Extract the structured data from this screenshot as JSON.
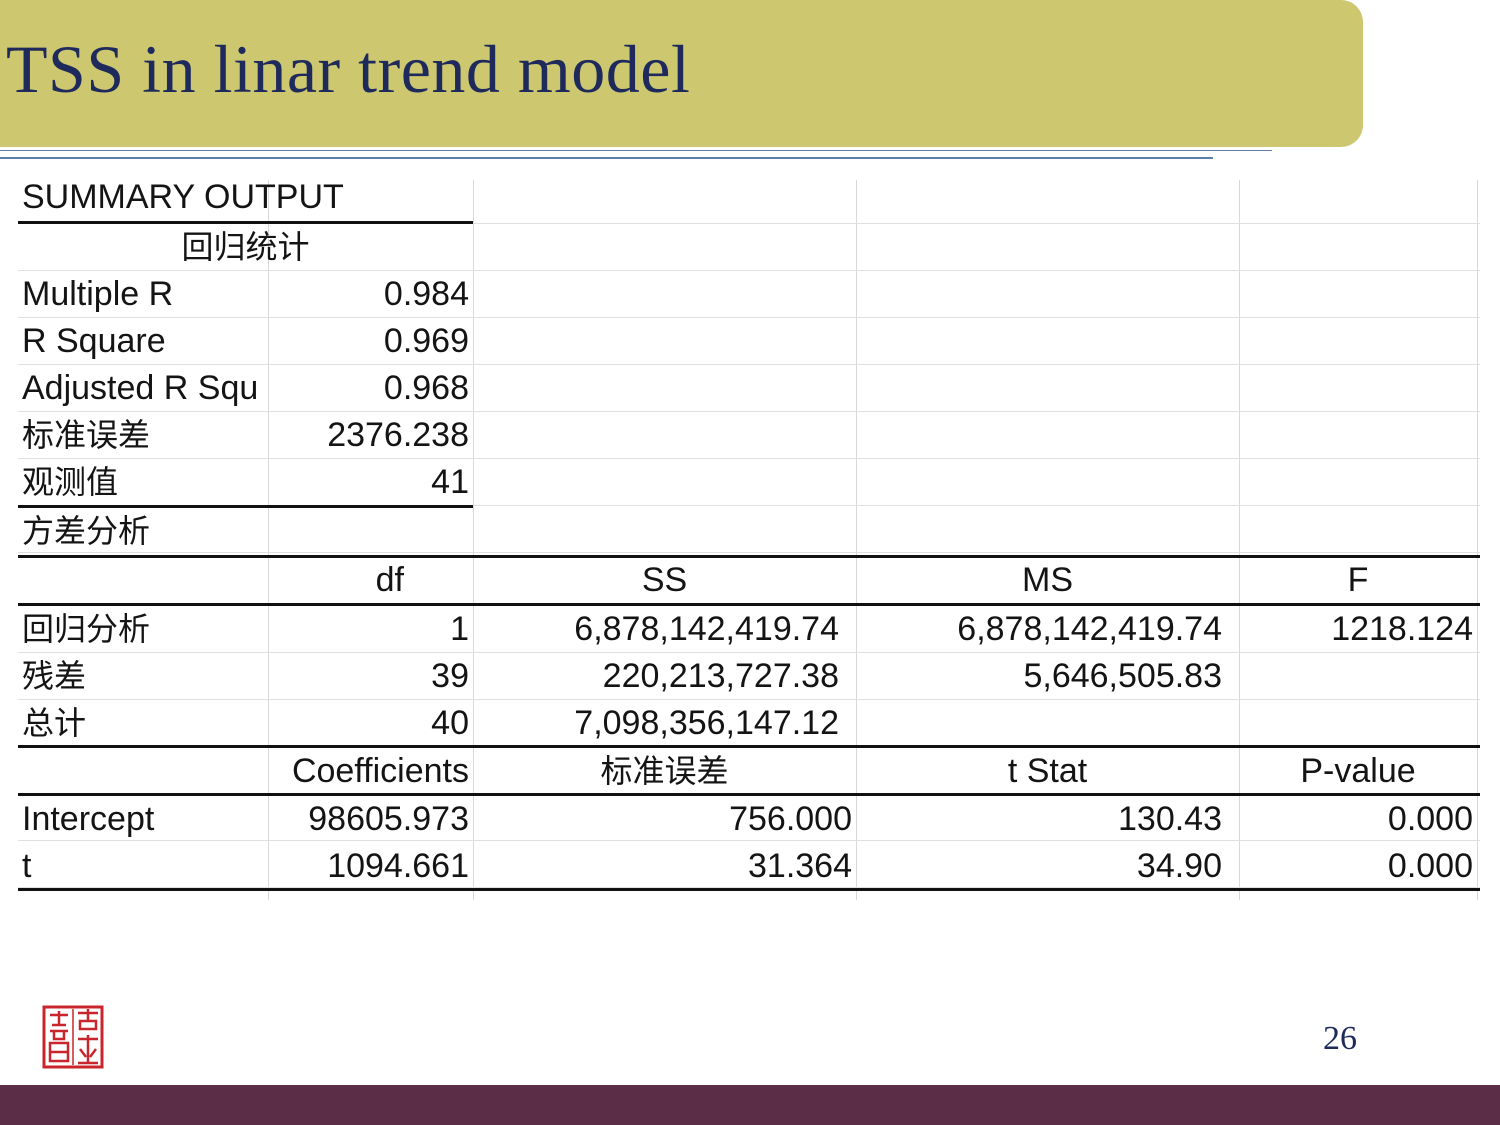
{
  "slide": {
    "title": "TSS in linar trend model",
    "page_number": "26",
    "colors": {
      "title_bar": "#cdc76f",
      "title_text": "#1e2a5c",
      "footer": "#5b2d47",
      "seal": "#c8262c"
    },
    "seal_icon": "chinese-seal-stamp"
  },
  "summary": {
    "heading": "SUMMARY OUTPUT",
    "regression_stats_header": "回归统计",
    "stats": [
      {
        "label": "Multiple R",
        "value": "0.984"
      },
      {
        "label": "R Square",
        "value": "0.969"
      },
      {
        "label": "Adjusted R Squ",
        "value": "0.968"
      },
      {
        "label": "标准误差",
        "value": "2376.238"
      },
      {
        "label": "观测值",
        "value": "41"
      }
    ],
    "anova_header": "方差分析",
    "anova_columns": [
      "df",
      "SS",
      "MS",
      "F"
    ],
    "anova_rows": [
      {
        "label": "回归分析",
        "df": "1",
        "ss": "6,878,142,419.74",
        "ms": "6,878,142,419.74",
        "f": "1218.124"
      },
      {
        "label": "残差",
        "df": "39",
        "ss": "220,213,727.38",
        "ms": "5,646,505.83",
        "f": ""
      },
      {
        "label": "总计",
        "df": "40",
        "ss": "7,098,356,147.12",
        "ms": "",
        "f": ""
      }
    ],
    "coef_columns": [
      "Coefficients",
      "标准误差",
      "t Stat",
      "P-value"
    ],
    "coef_rows": [
      {
        "label": "Intercept",
        "coef": "98605.973",
        "se": "756.000",
        "t": "130.43",
        "p": "0.000"
      },
      {
        "label": "t",
        "coef": "1094.661",
        "se": "31.364",
        "t": "34.90",
        "p": "0.000"
      }
    ]
  }
}
